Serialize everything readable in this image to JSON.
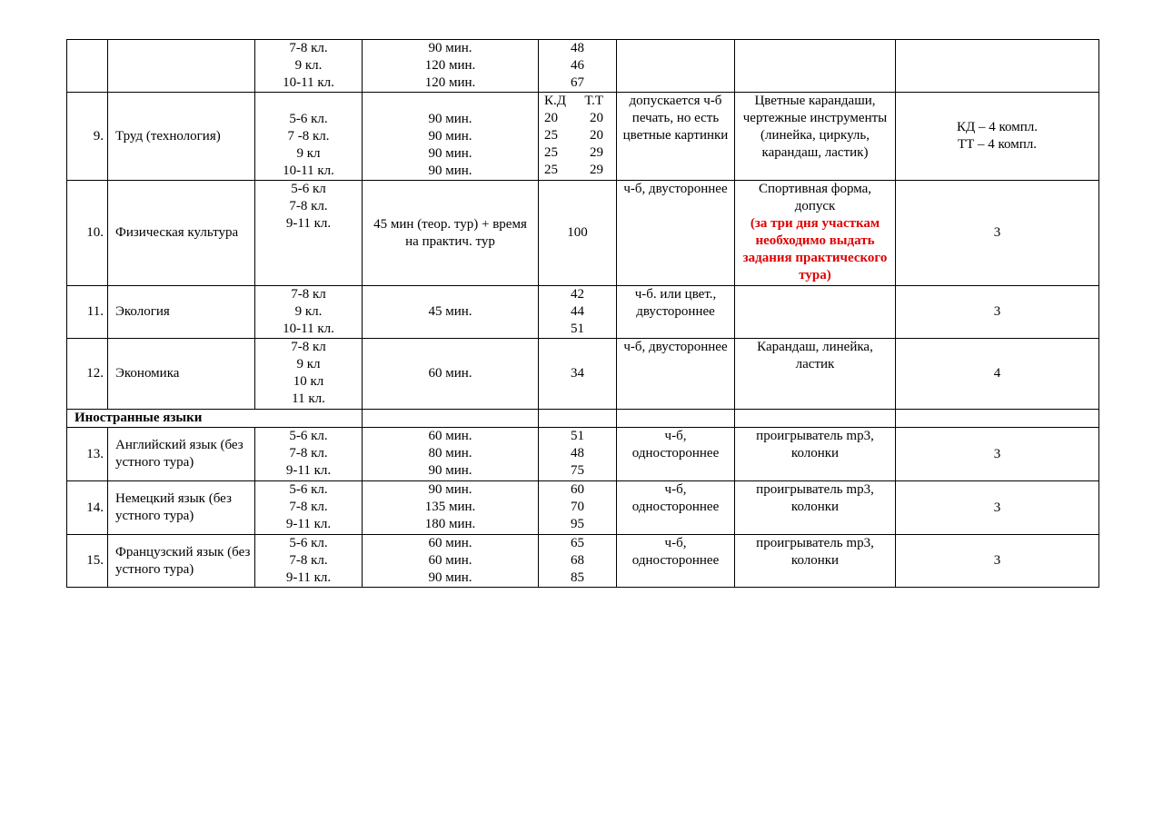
{
  "rows": [
    {
      "num": "",
      "subject": "",
      "grades": [
        "7-8 кл.",
        "9 кл.",
        "10-11 кл."
      ],
      "time": [
        "90 мин.",
        "120 мин.",
        "120 мин."
      ],
      "points": [
        "48",
        "46",
        "67"
      ],
      "print": "",
      "materials": "",
      "extra": ""
    },
    {
      "num": "9.",
      "subject": "Труд (технология)",
      "grades": [
        "5-6 кл.",
        "7 -8 кл.",
        "9 кл",
        "10-11 кл."
      ],
      "time": [
        "90 мин.",
        "90 мин.",
        "90 мин.",
        "90 мин."
      ],
      "points_header": [
        "К.Д",
        "Т.Т"
      ],
      "points_pairs": [
        [
          "20",
          "20"
        ],
        [
          "25",
          "20"
        ],
        [
          "25",
          "29"
        ],
        [
          "25",
          "29"
        ]
      ],
      "print": "допускается ч-б печать, но есть цветные картинки",
      "materials": "Цветные карандаши, чертежные инструменты (линейка, циркуль, карандаш, ластик)",
      "extra": [
        "КД – 4 компл.",
        "ТТ – 4 компл."
      ]
    },
    {
      "num": "10.",
      "subject": "Физическая культура",
      "grades": [
        "5-6 кл",
        "7-8 кл.",
        "9-11 кл."
      ],
      "time": "45 мин (теор. тур) + время на практич. тур",
      "points": "100",
      "print": "ч-б, двустороннее",
      "materials": "Спортивная форма, допуск",
      "materials_note": "(за три дня участкам необходимо выдать задания практического тура)",
      "extra": "3",
      "note_color": "#e00000"
    },
    {
      "num": "11.",
      "subject": "Экология",
      "grades": [
        "7-8 кл",
        "9 кл.",
        "10-11 кл."
      ],
      "time": "45 мин.",
      "points": [
        "42",
        "44",
        "51"
      ],
      "print": "ч-б. или цвет., двустороннее",
      "materials": "",
      "extra": "3"
    },
    {
      "num": "12.",
      "subject": "Экономика",
      "grades": [
        "7-8 кл",
        "9 кл",
        "10 кл",
        "11 кл."
      ],
      "time": "60 мин.",
      "points": "34",
      "print": "ч-б, двустороннее",
      "materials": "Карандаш, линейка, ластик",
      "extra": "4"
    },
    {
      "section": "Иностранные языки"
    },
    {
      "num": "13.",
      "subject": "Английский язык (без устного тура)",
      "grades": [
        "5-6 кл.",
        "7-8 кл.",
        "9-11 кл."
      ],
      "time": [
        "60 мин.",
        "80 мин.",
        "90 мин."
      ],
      "points": [
        "51",
        "48",
        "75"
      ],
      "print": "ч-б, одностороннее",
      "materials": "проигрыватель mp3, колонки",
      "extra": "3"
    },
    {
      "num": "14.",
      "subject": "Немецкий язык (без устного тура)",
      "grades": [
        "5-6 кл.",
        "7-8 кл.",
        "9-11 кл."
      ],
      "time": [
        "90 мин.",
        "135 мин.",
        "180 мин."
      ],
      "points": [
        "60",
        "70",
        "95"
      ],
      "print": "ч-б, одностороннее",
      "materials": "проигрыватель mp3, колонки",
      "extra": "3"
    },
    {
      "num": "15.",
      "subject": "Французский язык (без устного тура)",
      "grades": [
        "5-6 кл.",
        "7-8 кл.",
        "9-11 кл."
      ],
      "time": [
        "60 мин.",
        "60 мин.",
        "90 мин."
      ],
      "points": [
        "65",
        "68",
        "85"
      ],
      "print": "ч-б, одностороннее",
      "materials": "проигрыватель mp3, колонки",
      "extra": "3"
    }
  ]
}
